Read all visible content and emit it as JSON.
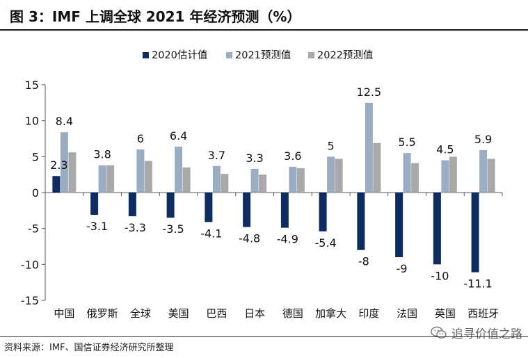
{
  "figure": {
    "title": "图 3：IMF 上调全球 2021 年经济预测（%）",
    "source": "资料来源：IMF、国信证券经济研究所整理",
    "watermark": "追寻价值之路",
    "watermark_icon": "wechat-icon"
  },
  "chart_data": {
    "type": "bar",
    "categories": [
      "中国",
      "俄罗斯",
      "全球",
      "美国",
      "巴西",
      "日本",
      "德国",
      "加拿大",
      "印度",
      "法国",
      "英国",
      "西班牙"
    ],
    "series": [
      {
        "name": "2020估计值",
        "color": "#0d2d62",
        "values": [
          2.3,
          -3.1,
          -3.3,
          -3.5,
          -4.1,
          -4.8,
          -4.9,
          -5.4,
          -8,
          -9,
          -10,
          -11.1
        ],
        "labels": [
          "2.3",
          "-3.1",
          "-3.3",
          "-3.5",
          "-4.1",
          "-4.8",
          "-4.9",
          "-5.4",
          "-8",
          "-9",
          "-10",
          "-11.1"
        ]
      },
      {
        "name": "2021预测值",
        "color": "#9badc2",
        "values": [
          8.4,
          3.8,
          6,
          6.4,
          3.7,
          3.3,
          3.6,
          5,
          12.5,
          5.5,
          4.5,
          5.9
        ],
        "labels": [
          "8.4",
          "3.8",
          "6",
          "6.4",
          "3.7",
          "3.3",
          "3.6",
          "5",
          "12.5",
          "5.5",
          "4.5",
          "5.9"
        ]
      },
      {
        "name": "2022预测值",
        "color": "#a9a9a9",
        "values": [
          5.6,
          3.8,
          4.4,
          3.5,
          2.6,
          2.5,
          3.4,
          4.7,
          6.9,
          4.1,
          5.0,
          4.7
        ]
      }
    ],
    "ylim": [
      -15,
      15
    ],
    "yticks": [
      -15,
      -10,
      -5,
      0,
      5,
      10,
      15
    ],
    "ytick_labels": [
      "-15",
      "-10",
      "-5",
      "0",
      "5",
      "10",
      "15"
    ],
    "grid": false,
    "legend": "top-left"
  }
}
